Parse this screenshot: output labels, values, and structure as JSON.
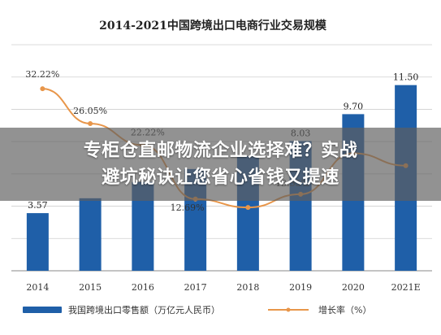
{
  "chart_data": {
    "type": "bar",
    "title": "2014-2021中国跨境出口电商行业交易规模",
    "categories": [
      "2014",
      "2015",
      "2016",
      "2017",
      "2018",
      "2019",
      "2020",
      "2021E"
    ],
    "series": [
      {
        "name": "我国跨境出口零售额（万亿元人民币）",
        "type": "bar",
        "color": "#1f5fa8",
        "values": [
          3.57,
          4.49,
          5.5,
          6.3,
          7.1,
          8.03,
          9.7,
          11.5
        ],
        "labels": [
          "3.57",
          "",
          "",
          "",
          "",
          "8.03",
          "9.70",
          "11.50"
        ]
      },
      {
        "name": "增长率（%）",
        "type": "line",
        "color": "#e8964a",
        "values": [
          32.22,
          26.05,
          22.22,
          12.69,
          11.2,
          13.55,
          20.8,
          18.6
        ],
        "labels": [
          "32.22%",
          "26.05%",
          "22.22%",
          "12.69%",
          "",
          "13.55%",
          "",
          ""
        ]
      }
    ],
    "ylim": [
      0,
      14
    ],
    "y2lim": [
      0,
      40
    ],
    "grid": true,
    "legend_position": "bottom"
  },
  "banner": {
    "line1": "专柜仓直邮物流企业选择难？实战",
    "line2": "避坑秘诀让您省心省钱又提速"
  },
  "colors": {
    "bar": "#1f5fa8",
    "line": "#e8964a",
    "grid": "#cfcfcf",
    "banner_overlay": "#5f5f5f"
  }
}
